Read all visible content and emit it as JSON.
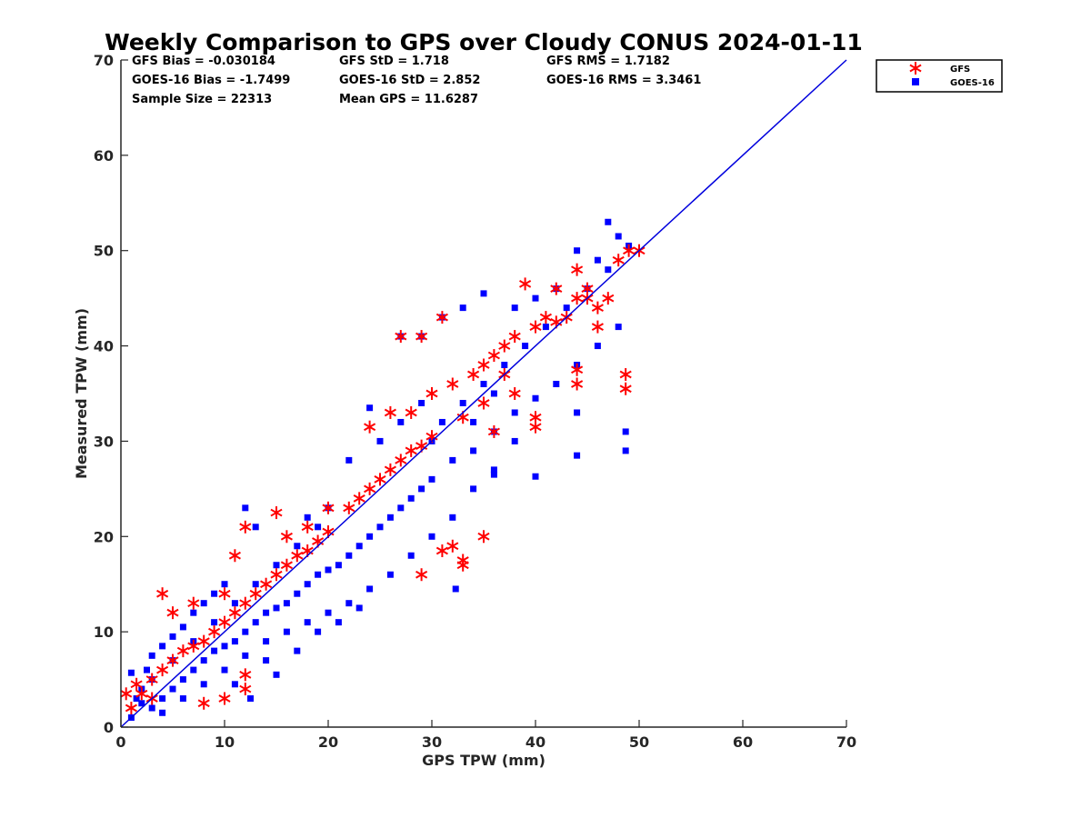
{
  "chart_data": {
    "type": "scatter",
    "title": "Weekly Comparison to GPS over Cloudy CONUS 2024-01-11",
    "xlabel": "GPS TPW (mm)",
    "ylabel": "Measured TPW (mm)",
    "xlim": [
      0,
      70
    ],
    "ylim": [
      0,
      70
    ],
    "xticks": [
      "0",
      "10",
      "20",
      "30",
      "40",
      "50",
      "60",
      "70"
    ],
    "yticks": [
      "0",
      "10",
      "20",
      "30",
      "40",
      "50",
      "60",
      "70"
    ],
    "grid": false,
    "legend_position": "outside-top-right",
    "stats": [
      "GFS Bias = -0.030184",
      "GFS StD = 1.718",
      "GFS RMS = 1.7182",
      "GOES-16 Bias = -1.7499",
      "GOES-16 StD = 2.852",
      "GOES-16 RMS = 3.3461",
      "Sample Size = 22313",
      "Mean GPS = 11.6287"
    ],
    "reference_line": {
      "x": [
        0,
        70
      ],
      "y": [
        0,
        70
      ],
      "color": "#0000dd"
    },
    "series": [
      {
        "name": "GOES-16",
        "marker": "square",
        "color": "#0000ff",
        "points": [
          [
            2,
            2.5
          ],
          [
            3,
            2
          ],
          [
            4,
            3
          ],
          [
            5,
            4
          ],
          [
            6,
            5
          ],
          [
            7,
            6
          ],
          [
            8,
            7
          ],
          [
            9,
            8
          ],
          [
            10,
            8.5
          ],
          [
            11,
            9
          ],
          [
            12,
            10
          ],
          [
            13,
            11
          ],
          [
            14,
            12
          ],
          [
            15,
            12.5
          ],
          [
            16,
            13
          ],
          [
            17,
            14
          ],
          [
            18,
            15
          ],
          [
            19,
            16
          ],
          [
            20,
            16.5
          ],
          [
            3,
            5
          ],
          [
            5,
            7
          ],
          [
            7,
            9
          ],
          [
            9,
            11
          ],
          [
            11,
            13
          ],
          [
            13,
            15
          ],
          [
            15,
            17
          ],
          [
            17,
            19
          ],
          [
            19,
            21
          ],
          [
            4,
            1.5
          ],
          [
            6,
            3
          ],
          [
            8,
            4.5
          ],
          [
            10,
            6
          ],
          [
            12,
            7.5
          ],
          [
            14,
            9
          ],
          [
            16,
            10
          ],
          [
            18,
            11
          ],
          [
            20,
            12
          ],
          [
            21,
            17
          ],
          [
            22,
            18
          ],
          [
            23,
            19
          ],
          [
            24,
            20
          ],
          [
            25,
            21
          ],
          [
            26,
            22
          ],
          [
            27,
            23
          ],
          [
            28,
            24
          ],
          [
            29,
            25
          ],
          [
            30,
            26
          ],
          [
            22,
            13
          ],
          [
            24,
            14.5
          ],
          [
            26,
            16
          ],
          [
            28,
            18
          ],
          [
            30,
            20
          ],
          [
            32,
            22
          ],
          [
            34,
            25
          ],
          [
            36,
            27
          ],
          [
            38,
            30
          ],
          [
            12,
            23
          ],
          [
            13,
            21
          ],
          [
            18,
            22
          ],
          [
            20,
            23
          ],
          [
            24,
            33.5
          ],
          [
            27,
            41
          ],
          [
            29,
            41
          ],
          [
            31,
            43
          ],
          [
            33,
            44
          ],
          [
            31,
            32
          ],
          [
            33,
            34
          ],
          [
            35,
            36
          ],
          [
            37,
            38
          ],
          [
            39,
            40
          ],
          [
            41,
            42
          ],
          [
            43,
            44
          ],
          [
            45,
            46
          ],
          [
            47,
            48
          ],
          [
            34,
            29
          ],
          [
            36,
            31
          ],
          [
            38,
            33
          ],
          [
            40,
            34.5
          ],
          [
            42,
            36
          ],
          [
            44,
            38
          ],
          [
            46,
            40
          ],
          [
            48,
            42
          ],
          [
            35,
            45.5
          ],
          [
            38,
            44
          ],
          [
            40,
            45
          ],
          [
            42,
            46
          ],
          [
            44,
            50
          ],
          [
            46,
            49
          ],
          [
            47,
            53
          ],
          [
            48,
            51.5
          ],
          [
            49,
            50.5
          ],
          [
            44,
            28.5
          ],
          [
            48.7,
            29
          ],
          [
            48.7,
            31
          ],
          [
            44,
            33
          ],
          [
            32.3,
            14.5
          ],
          [
            36,
            26.5
          ],
          [
            40,
            26.3
          ],
          [
            22,
            28
          ],
          [
            25,
            30
          ],
          [
            27,
            32
          ],
          [
            29,
            34
          ],
          [
            30,
            30
          ],
          [
            32,
            28
          ],
          [
            34,
            32
          ],
          [
            36,
            35
          ],
          [
            12.5,
            3
          ],
          [
            11,
            4.5
          ],
          [
            14,
            7
          ],
          [
            15,
            5.5
          ],
          [
            17,
            8
          ],
          [
            19,
            10
          ],
          [
            21,
            11
          ],
          [
            23,
            12.5
          ],
          [
            1,
            1
          ],
          [
            1.5,
            3
          ],
          [
            2,
            4
          ],
          [
            2.5,
            6
          ],
          [
            1,
            5.7
          ],
          [
            3,
            7.5
          ],
          [
            4,
            8.5
          ],
          [
            5,
            9.5
          ],
          [
            6,
            10.5
          ],
          [
            7,
            12
          ],
          [
            8,
            13
          ],
          [
            9,
            14
          ],
          [
            10,
            15
          ]
        ]
      },
      {
        "name": "GFS",
        "marker": "asterisk",
        "color": "#ff0000",
        "points": [
          [
            0.5,
            3.5
          ],
          [
            1.5,
            4.5
          ],
          [
            3,
            5
          ],
          [
            4,
            6
          ],
          [
            5,
            7
          ],
          [
            6,
            8
          ],
          [
            7,
            8.5
          ],
          [
            8,
            9
          ],
          [
            9,
            10
          ],
          [
            10,
            11
          ],
          [
            11,
            12
          ],
          [
            12,
            13
          ],
          [
            13,
            14
          ],
          [
            14,
            15
          ],
          [
            15,
            16
          ],
          [
            16,
            17
          ],
          [
            17,
            18
          ],
          [
            18,
            18.5
          ],
          [
            19,
            19.5
          ],
          [
            20,
            20.5
          ],
          [
            4,
            14
          ],
          [
            5,
            12
          ],
          [
            7,
            13
          ],
          [
            10,
            14
          ],
          [
            12,
            21
          ],
          [
            11,
            18
          ],
          [
            15,
            22.5
          ],
          [
            16,
            20
          ],
          [
            18,
            21
          ],
          [
            20,
            23
          ],
          [
            22,
            23
          ],
          [
            23,
            24
          ],
          [
            24,
            25
          ],
          [
            25,
            26
          ],
          [
            26,
            27
          ],
          [
            27,
            28
          ],
          [
            28,
            29
          ],
          [
            29,
            29.5
          ],
          [
            30,
            30.5
          ],
          [
            24,
            31.5
          ],
          [
            26,
            33
          ],
          [
            28,
            33
          ],
          [
            30,
            35
          ],
          [
            32,
            36
          ],
          [
            34,
            37
          ],
          [
            35,
            38
          ],
          [
            36,
            39
          ],
          [
            37,
            40
          ],
          [
            38,
            41
          ],
          [
            27,
            41
          ],
          [
            29,
            41
          ],
          [
            31,
            43
          ],
          [
            39,
            46.5
          ],
          [
            44,
            48
          ],
          [
            42,
            46
          ],
          [
            45,
            45
          ],
          [
            46,
            44
          ],
          [
            47,
            45
          ],
          [
            48,
            49
          ],
          [
            49,
            50
          ],
          [
            50,
            50
          ],
          [
            40,
            42
          ],
          [
            41,
            43
          ],
          [
            42,
            42.5
          ],
          [
            43,
            43
          ],
          [
            44,
            45
          ],
          [
            45,
            46
          ],
          [
            46,
            42
          ],
          [
            44,
            36
          ],
          [
            44,
            37.5
          ],
          [
            48.7,
            37
          ],
          [
            48.7,
            35.5
          ],
          [
            31,
            18.5
          ],
          [
            29,
            16
          ],
          [
            33,
            17.5
          ],
          [
            33,
            17
          ],
          [
            35,
            20
          ],
          [
            32,
            19
          ],
          [
            40,
            31.5
          ],
          [
            40,
            32.5
          ],
          [
            38,
            35
          ],
          [
            12,
            5.5
          ],
          [
            12,
            4
          ],
          [
            10,
            3
          ],
          [
            8,
            2.5
          ],
          [
            1,
            2
          ],
          [
            2,
            3.5
          ],
          [
            3,
            3
          ],
          [
            33,
            32.5
          ],
          [
            35,
            34
          ],
          [
            36,
            31
          ],
          [
            37,
            37
          ]
        ]
      }
    ]
  }
}
